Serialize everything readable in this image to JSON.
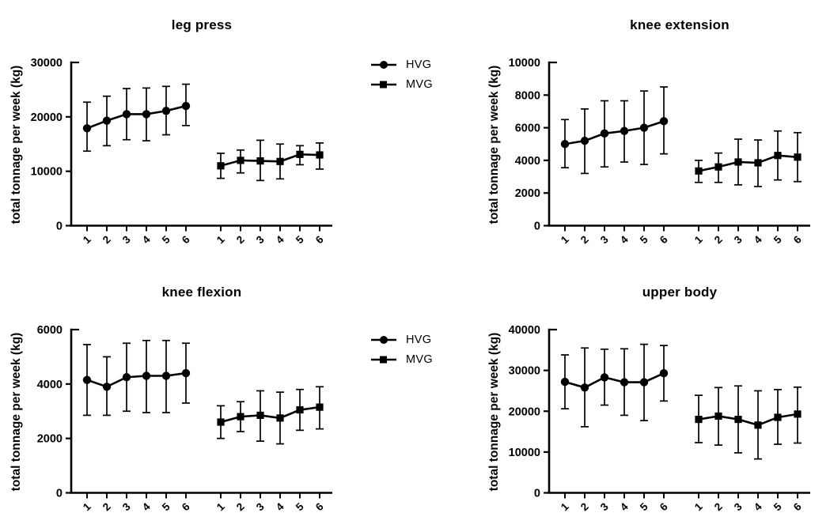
{
  "page": {
    "background": "#ffffff",
    "ink": "#000000"
  },
  "legend": {
    "items": [
      {
        "label": "HVG",
        "marker": "circle"
      },
      {
        "label": "MVG",
        "marker": "square"
      }
    ]
  },
  "chart_data": [
    {
      "type": "line",
      "title": "leg press",
      "xlabel": "",
      "ylabel": "total tonnage per week (kg)",
      "ylim": [
        0,
        30000
      ],
      "ytick_step": 10000,
      "ytick_labels": [
        "0",
        "10000",
        "20000",
        "30000"
      ],
      "x_categories": [
        "1",
        "2",
        "3",
        "4",
        "5",
        "6"
      ],
      "grid": false,
      "error_bars": true,
      "legend_position": "right-outside",
      "series": [
        {
          "name": "HVG",
          "marker": "circle",
          "group": 0,
          "values": [
            17900,
            19300,
            20500,
            20500,
            21100,
            22000
          ],
          "err_lo": [
            13700,
            14700,
            15800,
            15600,
            16700,
            18400
          ],
          "err_hi": [
            22700,
            23800,
            25200,
            25300,
            25600,
            26000
          ]
        },
        {
          "name": "MVG",
          "marker": "square",
          "group": 1,
          "values": [
            11000,
            12000,
            11900,
            11800,
            13100,
            13000
          ],
          "err_lo": [
            8700,
            9700,
            8300,
            8600,
            11200,
            10400
          ],
          "err_hi": [
            13300,
            13900,
            15700,
            15000,
            14700,
            15200
          ]
        }
      ]
    },
    {
      "type": "line",
      "title": "knee extension",
      "xlabel": "",
      "ylabel": "total tonnage per week (kg)",
      "ylim": [
        0,
        10000
      ],
      "ytick_step": 2000,
      "ytick_labels": [
        "0",
        "2000",
        "4000",
        "6000",
        "8000",
        "10000"
      ],
      "x_categories": [
        "1",
        "2",
        "3",
        "4",
        "5",
        "6"
      ],
      "grid": false,
      "error_bars": true,
      "legend_position": "none",
      "series": [
        {
          "name": "HVG",
          "marker": "circle",
          "group": 0,
          "values": [
            5000,
            5200,
            5650,
            5800,
            6000,
            6400
          ],
          "err_lo": [
            3550,
            3200,
            3600,
            3900,
            3750,
            4400
          ],
          "err_hi": [
            6500,
            7150,
            7650,
            7650,
            8250,
            8500
          ]
        },
        {
          "name": "MVG",
          "marker": "square",
          "group": 1,
          "values": [
            3350,
            3600,
            3900,
            3850,
            4300,
            4200
          ],
          "err_lo": [
            2650,
            2650,
            2500,
            2400,
            2800,
            2700
          ],
          "err_hi": [
            4000,
            4450,
            5300,
            5250,
            5800,
            5700
          ]
        }
      ]
    },
    {
      "type": "line",
      "title": "knee flexion",
      "xlabel": "",
      "ylabel": "total tonnage per week (kg)",
      "ylim": [
        0,
        6000
      ],
      "ytick_step": 2000,
      "ytick_labels": [
        "0",
        "2000",
        "4000",
        "6000"
      ],
      "x_categories": [
        "1",
        "2",
        "3",
        "4",
        "5",
        "6"
      ],
      "grid": false,
      "error_bars": true,
      "legend_position": "right-outside",
      "series": [
        {
          "name": "HVG",
          "marker": "circle",
          "group": 0,
          "values": [
            4150,
            3900,
            4250,
            4300,
            4300,
            4400
          ],
          "err_lo": [
            2850,
            2850,
            3000,
            2950,
            2950,
            3300
          ],
          "err_hi": [
            5450,
            5000,
            5500,
            5600,
            5600,
            5500
          ]
        },
        {
          "name": "MVG",
          "marker": "square",
          "group": 1,
          "values": [
            2600,
            2800,
            2850,
            2750,
            3050,
            3150
          ],
          "err_lo": [
            2000,
            2250,
            1900,
            1800,
            2300,
            2350
          ],
          "err_hi": [
            3200,
            3350,
            3750,
            3700,
            3800,
            3900
          ]
        }
      ]
    },
    {
      "type": "line",
      "title": "upper body",
      "xlabel": "",
      "ylabel": "total tonnage per week (kg)",
      "ylim": [
        0,
        40000
      ],
      "ytick_step": 10000,
      "ytick_labels": [
        "0",
        "10000",
        "20000",
        "30000",
        "40000"
      ],
      "x_categories": [
        "1",
        "2",
        "3",
        "4",
        "5",
        "6"
      ],
      "grid": false,
      "error_bars": true,
      "legend_position": "none",
      "series": [
        {
          "name": "HVG",
          "marker": "circle",
          "group": 0,
          "values": [
            27200,
            25800,
            28300,
            27100,
            27100,
            29300
          ],
          "err_lo": [
            20600,
            16200,
            21500,
            19000,
            17700,
            22500
          ],
          "err_hi": [
            33800,
            35500,
            35200,
            35300,
            36400,
            36100
          ]
        },
        {
          "name": "MVG",
          "marker": "square",
          "group": 1,
          "values": [
            18000,
            18800,
            18000,
            16600,
            18500,
            19300
          ],
          "err_lo": [
            12300,
            11700,
            9800,
            8300,
            11900,
            12200
          ],
          "err_hi": [
            23900,
            25800,
            26200,
            25000,
            25300,
            25900
          ]
        }
      ]
    }
  ]
}
